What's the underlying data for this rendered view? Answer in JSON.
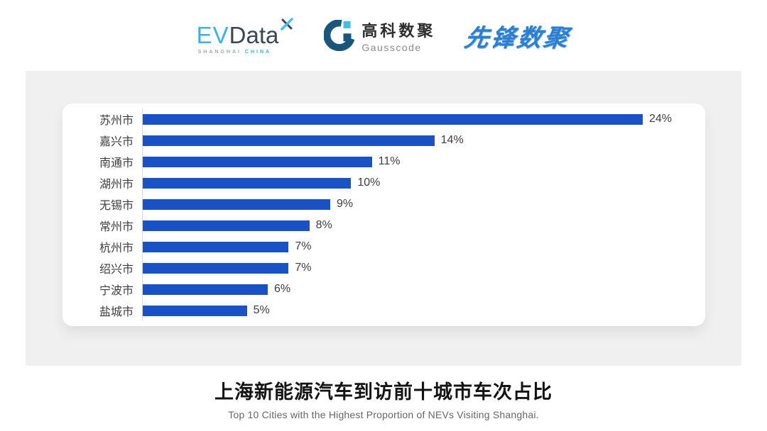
{
  "header": {
    "evdata": {
      "ev": "EV",
      "data": "Data",
      "sub_left": "SHANGHAI",
      "sub_right": "CHINA"
    },
    "gausscode": {
      "cn": "高科数聚",
      "en": "Gausscode"
    },
    "pioneer": {
      "text": "先锋数聚"
    }
  },
  "chart_data": {
    "type": "bar",
    "orientation": "horizontal",
    "title": "上海新能源汽车到访前十城市车次占比",
    "subtitle": "Top 10 Cities with the Highest Proportion of  NEVs Visiting Shanghai.",
    "categories": [
      "苏州市",
      "嘉兴市",
      "南通市",
      "湖州市",
      "无锡市",
      "常州市",
      "杭州市",
      "绍兴市",
      "宁波市",
      "盐城市"
    ],
    "values": [
      24,
      14,
      11,
      10,
      9,
      8,
      7,
      7,
      6,
      5
    ],
    "value_labels": [
      "24%",
      "14%",
      "11%",
      "10%",
      "9%",
      "8%",
      "7%",
      "7%",
      "6%",
      "5%"
    ],
    "xlim": [
      0,
      27
    ],
    "grid": false,
    "legend": false,
    "bar_color": "#1a52c5",
    "axis_color": "#d9d9d9"
  },
  "colors": {
    "page_bg": "#ffffff",
    "panel_bg": "#f0f0f0",
    "card_bg": "#ffffff",
    "label_text": "#3d3d3d",
    "title_text": "#141414",
    "subtitle_text": "#666666",
    "evdata_blue": "#38b3e3",
    "evdata_dark": "#3a4656",
    "gauss_dark": "#1a567c",
    "gauss_light": "#45bde8",
    "pioneer_blue": "#2e7ecf"
  }
}
